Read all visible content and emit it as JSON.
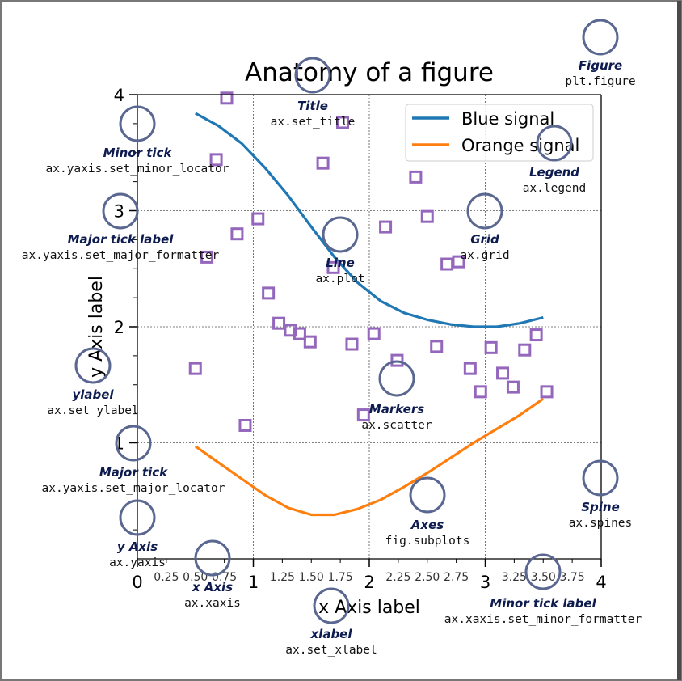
{
  "chart_data": {
    "type": "line",
    "title": "Anatomy of a figure",
    "xlabel": "x Axis label",
    "ylabel": "y Axis label",
    "xlim": [
      0,
      4
    ],
    "ylim": [
      0,
      4
    ],
    "grid": true,
    "legend_position": "top-right",
    "x_major_ticks": [
      "0",
      "1",
      "2",
      "3",
      "4"
    ],
    "x_minor_ticks": [
      "0.25",
      "0.50",
      "0.75",
      "1.25",
      "1.50",
      "1.75",
      "2.25",
      "2.50",
      "2.75",
      "3.25",
      "3.50",
      "3.75"
    ],
    "y_major_ticks": [
      "1",
      "2",
      "3",
      "4"
    ],
    "series": [
      {
        "name": "Blue signal",
        "kind": "line",
        "color": "#1f77b4",
        "x": [
          0.5,
          0.7,
          0.9,
          1.1,
          1.3,
          1.5,
          1.7,
          1.9,
          2.1,
          2.3,
          2.5,
          2.7,
          2.9,
          3.1,
          3.3,
          3.5
        ],
        "y": [
          3.84,
          3.73,
          3.58,
          3.37,
          3.13,
          2.86,
          2.6,
          2.38,
          2.22,
          2.12,
          2.06,
          2.02,
          2.0,
          2.0,
          2.03,
          2.08
        ]
      },
      {
        "name": "Orange signal",
        "kind": "line",
        "color": "#ff7f0e",
        "x": [
          0.5,
          0.7,
          0.9,
          1.1,
          1.3,
          1.5,
          1.7,
          1.9,
          2.1,
          2.3,
          2.5,
          2.7,
          2.9,
          3.1,
          3.3,
          3.5
        ],
        "y": [
          0.97,
          0.83,
          0.69,
          0.55,
          0.44,
          0.38,
          0.38,
          0.43,
          0.51,
          0.62,
          0.74,
          0.87,
          1.0,
          1.12,
          1.24,
          1.38
        ]
      },
      {
        "kind": "scatter",
        "color": "#9467bd",
        "x": [
          0.5,
          0.6,
          0.68,
          0.77,
          0.86,
          0.93,
          1.04,
          1.13,
          1.22,
          1.32,
          1.4,
          1.49,
          1.6,
          1.69,
          1.77,
          1.85,
          1.95,
          2.04,
          2.14,
          2.24,
          2.4,
          2.5,
          2.58,
          2.67,
          2.77,
          2.87,
          2.96,
          3.05,
          3.15,
          3.24,
          3.34,
          3.44,
          3.53
        ],
        "y": [
          1.64,
          2.6,
          3.44,
          3.97,
          2.8,
          1.15,
          2.93,
          2.29,
          2.03,
          1.97,
          1.94,
          1.87,
          3.41,
          2.51,
          3.76,
          1.85,
          1.24,
          1.94,
          2.86,
          1.71,
          3.29,
          2.95,
          1.83,
          2.54,
          2.56,
          1.64,
          1.44,
          1.82,
          1.6,
          1.48,
          1.8,
          1.93,
          1.44
        ]
      }
    ]
  },
  "annotations": [
    {
      "id": "title",
      "name": "Title",
      "code": "ax.set_title"
    },
    {
      "id": "figure",
      "name": "Figure",
      "code": "plt.figure"
    },
    {
      "id": "legend",
      "name": "Legend",
      "code": "ax.legend"
    },
    {
      "id": "minor-tick",
      "name": "Minor tick",
      "code": "ax.yaxis.set_minor_locator"
    },
    {
      "id": "major-tick-label",
      "name": "Major tick label",
      "code": "ax.yaxis.set_major_formatter"
    },
    {
      "id": "line",
      "name": "Line",
      "code": "ax.plot"
    },
    {
      "id": "grid",
      "name": "Grid",
      "code": "ax.grid"
    },
    {
      "id": "ylabel",
      "name": "ylabel",
      "code": "ax.set_ylabel"
    },
    {
      "id": "markers",
      "name": "Markers",
      "code": "ax.scatter"
    },
    {
      "id": "major-tick",
      "name": "Major tick",
      "code": "ax.yaxis.set_major_locator"
    },
    {
      "id": "spine",
      "name": "Spine",
      "code": "ax.spines"
    },
    {
      "id": "axes",
      "name": "Axes",
      "code": "fig.subplots"
    },
    {
      "id": "y-axis",
      "name": "y Axis",
      "code": "ax.yaxis"
    },
    {
      "id": "x-axis",
      "name": "x Axis",
      "code": "ax.xaxis"
    },
    {
      "id": "minor-tick-label",
      "name": "Minor tick label",
      "code": "ax.xaxis.set_minor_formatter"
    },
    {
      "id": "xlabel",
      "name": "xlabel",
      "code": "ax.set_xlabel"
    }
  ],
  "colors": {
    "annotation_circle": "#5a6790",
    "annotation_text": "#0d1b4f",
    "grid": "#555555",
    "figure_border": "#777777"
  }
}
